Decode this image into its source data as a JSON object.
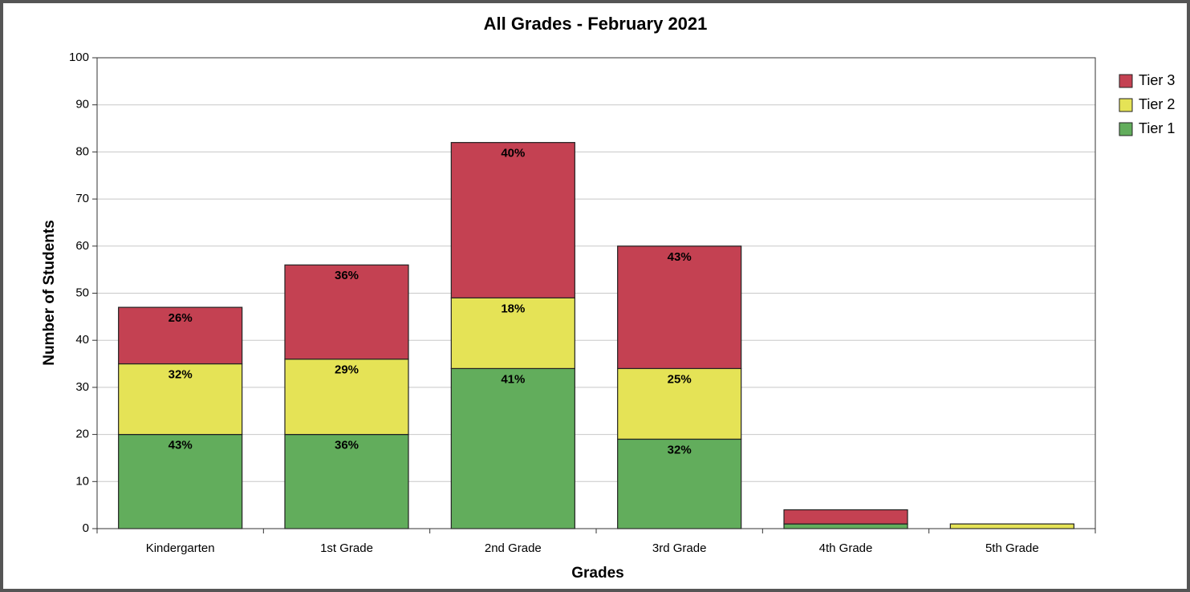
{
  "chart_data": {
    "type": "stacked_bar",
    "title": "All Grades - February 2021",
    "x_label": "Grades",
    "y_label": "Number of Students",
    "categories": [
      "Kindergarten",
      "1st Grade",
      "2nd Grade",
      "3rd Grade",
      "4th Grade",
      "5th Grade"
    ],
    "series": [
      {
        "name": "Tier 1",
        "color": "#62ad5c",
        "values": [
          20,
          20,
          34,
          19,
          1,
          0
        ],
        "value_labels": [
          "43%",
          "36%",
          "41%",
          "32%",
          null,
          null
        ]
      },
      {
        "name": "Tier 2",
        "color": "#e5e356",
        "values": [
          15,
          16,
          15,
          15,
          0,
          1
        ],
        "value_labels": [
          "32%",
          "29%",
          "18%",
          "25%",
          null,
          null
        ]
      },
      {
        "name": "Tier 3",
        "color": "#c44152",
        "values": [
          12,
          20,
          33,
          26,
          3,
          0
        ],
        "value_labels": [
          "26%",
          "36%",
          "40%",
          "43%",
          null,
          null
        ]
      }
    ],
    "ylim": [
      0,
      100
    ],
    "yticks": [
      0,
      10,
      20,
      30,
      40,
      50,
      60,
      70,
      80,
      90,
      100
    ],
    "grid": true,
    "legend": "right"
  }
}
